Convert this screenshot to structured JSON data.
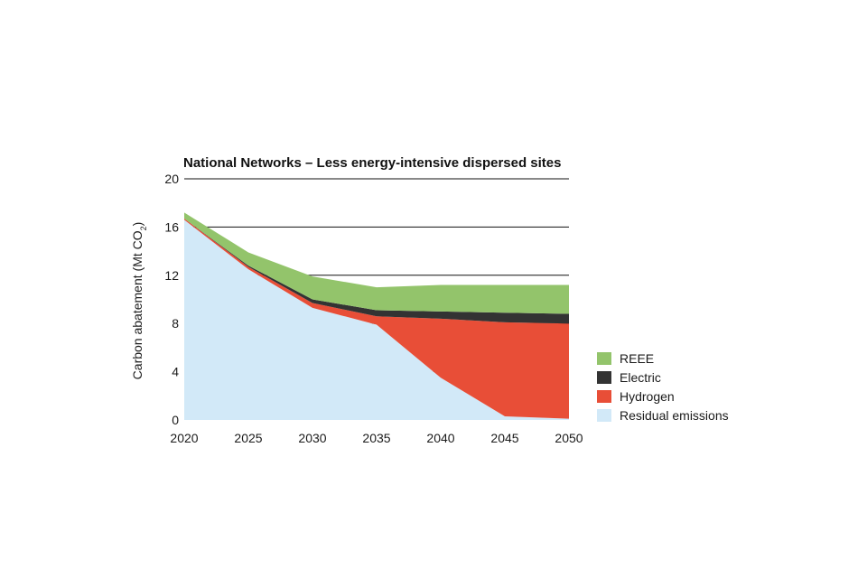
{
  "chart_data": {
    "type": "area",
    "stacked": true,
    "title": "National Networks – Less energy-intensive dispersed sites",
    "ylabel": "Carbon abatement (Mt CO",
    "ylabel_subscript": "2",
    "ylabel_suffix": ")",
    "xlabel": "",
    "x": [
      2020,
      2025,
      2030,
      2035,
      2040,
      2045,
      2050
    ],
    "ylim": [
      0,
      20
    ],
    "yticks": [
      0,
      4,
      8,
      12,
      16,
      20
    ],
    "series": [
      {
        "name": "Residual emissions",
        "color": "#d2e9f8",
        "values": [
          16.6,
          12.5,
          9.3,
          7.9,
          3.5,
          0.3,
          0.1
        ]
      },
      {
        "name": "Hydrogen",
        "color": "#e84e37",
        "values": [
          0.1,
          0.2,
          0.4,
          0.7,
          4.9,
          7.8,
          7.9
        ]
      },
      {
        "name": "Electric",
        "color": "#333333",
        "values": [
          0.0,
          0.1,
          0.3,
          0.5,
          0.6,
          0.8,
          0.8
        ]
      },
      {
        "name": "REEE",
        "color": "#93c46b",
        "values": [
          0.5,
          1.1,
          1.9,
          1.9,
          2.2,
          2.3,
          2.4
        ]
      }
    ],
    "legend_order": [
      "REEE",
      "Electric",
      "Hydrogen",
      "Residual emissions"
    ],
    "legend_position": "right"
  }
}
